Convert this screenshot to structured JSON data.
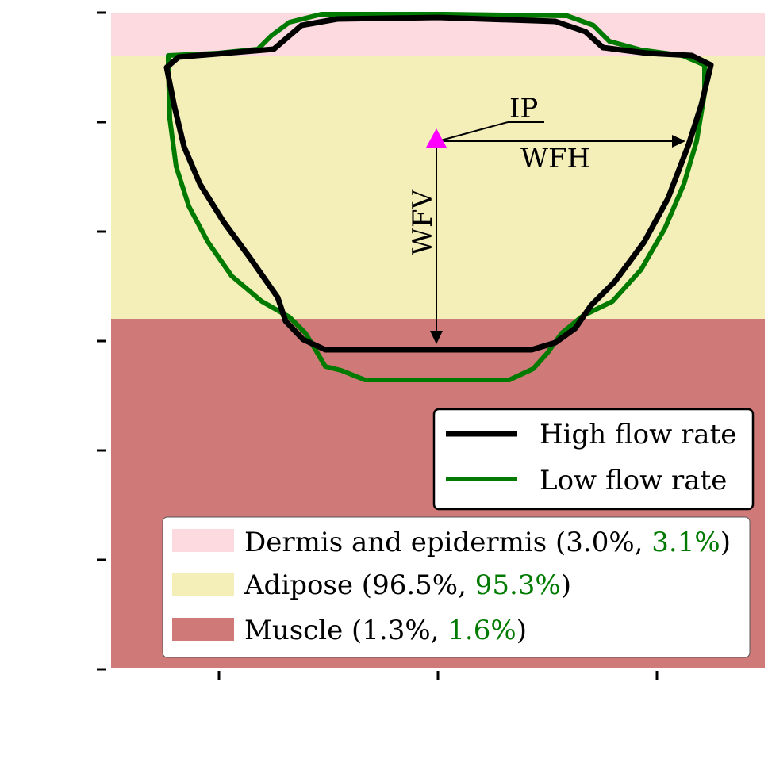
{
  "layers": [
    {
      "name": "Dermis and epidermis",
      "high": "3.0%",
      "low": "3.1%",
      "color": "#fdd9e0"
    },
    {
      "name": "Adipose",
      "high": "96.5%",
      "low": "95.3%",
      "color": "#f4efb9"
    },
    {
      "name": "Muscle",
      "high": "1.3%",
      "low": "1.6%",
      "color": "#cf7a79"
    }
  ],
  "layer_legend": {
    "dermis": {
      "prefix": "Dermis and epidermis (",
      "high": "3.0%",
      "sep": ", ",
      "low": "3.1%",
      "suffix": ")"
    },
    "adipose": {
      "prefix": "Adipose (",
      "high": "96.5%",
      "sep": ", ",
      "low": "95.3%",
      "suffix": ")"
    },
    "muscle": {
      "prefix": "Muscle (",
      "high": "1.3%",
      "sep": ", ",
      "low": "1.6%",
      "suffix": ")"
    }
  },
  "flow_legend": {
    "high": "High flow rate",
    "low": "Low flow rate"
  },
  "annotations": {
    "ip": "IP",
    "wfh": "WFH",
    "wfv": "WFV"
  },
  "colors": {
    "high_flow": "#000000",
    "low_flow": "#007a00",
    "ip_marker": "#ff00ff",
    "low_value_text": "#007a00"
  }
}
